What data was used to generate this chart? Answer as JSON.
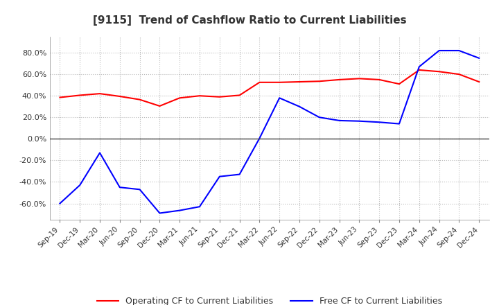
{
  "title": "[9115]  Trend of Cashflow Ratio to Current Liabilities",
  "x_labels": [
    "Sep-19",
    "Dec-19",
    "Mar-20",
    "Jun-20",
    "Sep-20",
    "Dec-20",
    "Mar-21",
    "Jun-21",
    "Sep-21",
    "Dec-21",
    "Mar-22",
    "Jun-22",
    "Sep-22",
    "Dec-22",
    "Mar-23",
    "Jun-23",
    "Sep-23",
    "Dec-23",
    "Mar-24",
    "Jun-24",
    "Sep-24",
    "Dec-24"
  ],
  "operating_cf": [
    38.5,
    40.5,
    42.0,
    39.5,
    36.5,
    30.5,
    38.0,
    40.0,
    39.0,
    40.5,
    52.5,
    52.5,
    53.0,
    53.5,
    55.0,
    56.0,
    55.0,
    51.0,
    64.0,
    62.5,
    60.0,
    53.0
  ],
  "free_cf": [
    -60.0,
    -43.0,
    -13.0,
    -45.0,
    -47.0,
    -69.0,
    -66.5,
    -63.0,
    -35.0,
    -33.0,
    0.5,
    38.0,
    30.0,
    20.0,
    17.0,
    16.5,
    15.5,
    14.0,
    67.0,
    82.0,
    82.0,
    75.0
  ],
  "operating_color": "#ff0000",
  "free_color": "#0000ff",
  "background_color": "#ffffff",
  "grid_color": "#bbbbbb",
  "ylim": [
    -75,
    95
  ],
  "yticks": [
    -60,
    -40,
    -20,
    0,
    20,
    40,
    60,
    80
  ],
  "legend_labels": [
    "Operating CF to Current Liabilities",
    "Free CF to Current Liabilities"
  ]
}
